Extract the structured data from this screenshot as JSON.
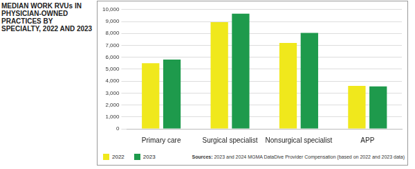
{
  "chart_data": {
    "type": "bar",
    "title": "MEDIAN WORK RVUs IN PHYSICIAN-OWNED PRACTICES BY SPECIALTY, 2022 AND 2023",
    "source": "Sources: 2023 and 2024 MGMA DataDive Provider Compensation (based on 2022 and 2023 data)",
    "categories": [
      "Primary care",
      "Surgical specialist",
      "Nonsurgical specialist",
      "APP"
    ],
    "series": [
      {
        "name": "2022",
        "color": "#f0e81c",
        "values": [
          5500,
          8950,
          7200,
          3600
        ]
      },
      {
        "name": "2023",
        "color": "#1e9a4c",
        "values": [
          5800,
          9650,
          8050,
          3550
        ]
      }
    ],
    "ylim": [
      0,
      10000
    ],
    "yticks": [
      0,
      {
        "value": 1000,
        "label": "1,000"
      },
      {
        "value": 2000,
        "label": "2,000"
      },
      {
        "value": 3000,
        "label": "3,000"
      },
      {
        "value": 4000,
        "label": "4,000"
      },
      {
        "value": 5000,
        "label": "5,000"
      },
      {
        "value": 6000,
        "label": "6,000"
      },
      {
        "value": 7000,
        "label": "7,000"
      },
      {
        "value": 8000,
        "label": "8,000"
      },
      {
        "value": 9000,
        "label": "9,000"
      },
      {
        "value": 10000,
        "label": "10,000"
      }
    ],
    "grid": true,
    "legend": "bottom"
  }
}
